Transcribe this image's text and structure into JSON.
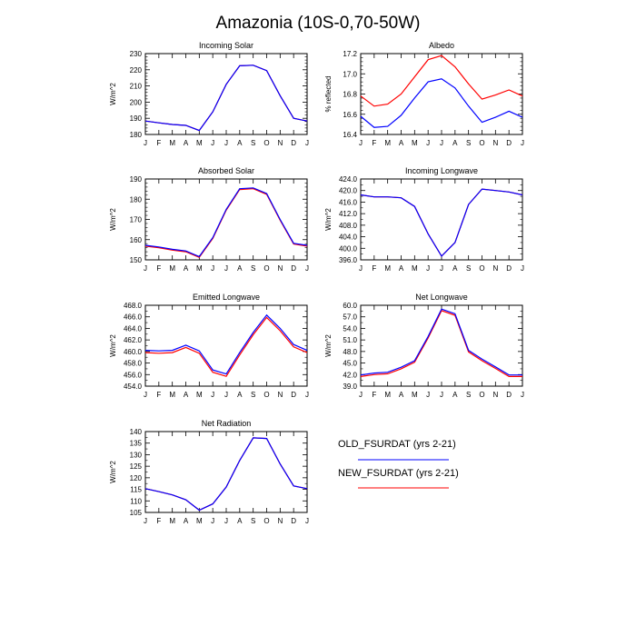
{
  "title": "Amazonia (10S-0,70-50W)",
  "months": [
    "J",
    "F",
    "M",
    "A",
    "M",
    "J",
    "J",
    "A",
    "S",
    "O",
    "N",
    "D",
    "J"
  ],
  "legend": [
    {
      "label": "OLD_FSURDAT (yrs 2-21)",
      "color": "#0000ff"
    },
    {
      "label": "NEW_FSURDAT (yrs 2-21)",
      "color": "#ff0000"
    }
  ],
  "chart_data": [
    {
      "type": "line",
      "title": "Incoming Solar",
      "ylabel": "W/m^2",
      "ylim": [
        180,
        230
      ],
      "yticks": [
        "180",
        "190",
        "200",
        "210",
        "220",
        "230"
      ],
      "series": [
        {
          "name": "OLD_FSURDAT (yrs 2-21)",
          "color": "#0000ff",
          "values": [
            188.3,
            187.2,
            186.2,
            185.6,
            182.5,
            194.0,
            211.0,
            222.5,
            222.8,
            219.5,
            204.0,
            190.0,
            188.3
          ]
        },
        {
          "name": "NEW_FSURDAT (yrs 2-21)",
          "color": "#ff0000",
          "values": [
            188.3,
            187.2,
            186.2,
            185.6,
            182.5,
            194.0,
            211.0,
            222.5,
            222.8,
            219.5,
            204.0,
            190.0,
            188.3
          ]
        }
      ]
    },
    {
      "type": "line",
      "title": "Albedo",
      "ylabel": "% reflected",
      "ylim": [
        16.4,
        17.2
      ],
      "yticks": [
        "16.4",
        "16.6",
        "16.8",
        "17.0",
        "17.2"
      ],
      "series": [
        {
          "name": "OLD_FSURDAT (yrs 2-21)",
          "color": "#0000ff",
          "values": [
            16.58,
            16.47,
            16.48,
            16.59,
            16.76,
            16.92,
            16.95,
            16.86,
            16.68,
            16.52,
            16.57,
            16.63,
            16.57
          ]
        },
        {
          "name": "NEW_FSURDAT (yrs 2-21)",
          "color": "#ff0000",
          "values": [
            16.78,
            16.68,
            16.7,
            16.8,
            16.97,
            17.14,
            17.18,
            17.07,
            16.9,
            16.75,
            16.79,
            16.84,
            16.78
          ]
        }
      ]
    },
    {
      "type": "line",
      "title": "Absorbed Solar",
      "ylabel": "W/m^2",
      "ylim": [
        150,
        190
      ],
      "yticks": [
        "150",
        "160",
        "170",
        "180",
        "190"
      ],
      "series": [
        {
          "name": "OLD_FSURDAT (yrs 2-21)",
          "color": "#0000ff",
          "values": [
            157.2,
            156.4,
            155.2,
            154.4,
            151.6,
            161.0,
            175.0,
            185.2,
            185.6,
            182.8,
            170.0,
            158.2,
            157.2
          ]
        },
        {
          "name": "NEW_FSURDAT (yrs 2-21)",
          "color": "#ff0000",
          "values": [
            156.8,
            156.0,
            154.8,
            154.0,
            151.2,
            160.6,
            174.6,
            184.8,
            185.2,
            182.4,
            169.6,
            157.8,
            156.8
          ]
        }
      ]
    },
    {
      "type": "line",
      "title": "Incoming Longwave",
      "ylabel": "W/m^2",
      "ylim": [
        396.0,
        424.0
      ],
      "yticks": [
        "396.0",
        "400.0",
        "404.0",
        "408.0",
        "412.0",
        "416.0",
        "420.0",
        "424.0"
      ],
      "series": [
        {
          "name": "OLD_FSURDAT (yrs 2-21)",
          "color": "#0000ff",
          "values": [
            418.5,
            417.8,
            417.8,
            417.5,
            414.5,
            405.0,
            397.3,
            402.0,
            415.2,
            420.5,
            420.0,
            419.5,
            418.5
          ]
        },
        {
          "name": "NEW_FSURDAT (yrs 2-21)",
          "color": "#ff0000",
          "values": [
            418.5,
            417.8,
            417.8,
            417.5,
            414.5,
            405.0,
            397.3,
            402.0,
            415.2,
            420.5,
            420.0,
            419.5,
            418.5
          ]
        }
      ]
    },
    {
      "type": "line",
      "title": "Emitted Longwave",
      "ylabel": "W/m^2",
      "ylim": [
        454.0,
        468.0
      ],
      "yticks": [
        "454.0",
        "456.0",
        "458.0",
        "460.0",
        "462.0",
        "464.0",
        "466.0",
        "468.0"
      ],
      "series": [
        {
          "name": "OLD_FSURDAT (yrs 2-21)",
          "color": "#0000ff",
          "values": [
            460.2,
            460.1,
            460.2,
            461.1,
            460.1,
            456.8,
            456.1,
            459.8,
            463.3,
            466.3,
            464.0,
            461.2,
            460.2
          ]
        },
        {
          "name": "NEW_FSURDAT (yrs 2-21)",
          "color": "#ff0000",
          "values": [
            459.8,
            459.7,
            459.8,
            460.7,
            459.7,
            456.4,
            455.7,
            459.4,
            462.9,
            465.9,
            463.6,
            460.8,
            459.8
          ]
        }
      ]
    },
    {
      "type": "line",
      "title": "Net Longwave",
      "ylabel": "W/m^2",
      "ylim": [
        39.0,
        60.0
      ],
      "yticks": [
        "39.0",
        "42.0",
        "45.0",
        "48.0",
        "51.0",
        "54.0",
        "57.0",
        "60.0"
      ],
      "series": [
        {
          "name": "OLD_FSURDAT (yrs 2-21)",
          "color": "#0000ff",
          "values": [
            41.9,
            42.4,
            42.6,
            43.9,
            45.6,
            51.9,
            59.0,
            57.8,
            48.3,
            46.0,
            44.0,
            41.9,
            41.9
          ]
        },
        {
          "name": "NEW_FSURDAT (yrs 2-21)",
          "color": "#ff0000",
          "values": [
            41.5,
            42.0,
            42.2,
            43.5,
            45.2,
            51.5,
            58.6,
            57.4,
            47.9,
            45.6,
            43.6,
            41.5,
            41.5
          ]
        }
      ]
    },
    {
      "type": "line",
      "title": "Net Radiation",
      "ylabel": "W/m^2",
      "ylim": [
        105,
        140
      ],
      "yticks": [
        "105",
        "110",
        "115",
        "120",
        "125",
        "130",
        "135",
        "140"
      ],
      "series": [
        {
          "name": "OLD_FSURDAT (yrs 2-21)",
          "color": "#0000ff",
          "values": [
            115.3,
            114.0,
            112.6,
            110.5,
            106.0,
            108.7,
            116.0,
            127.5,
            137.3,
            137.0,
            126.0,
            116.5,
            115.3
          ]
        },
        {
          "name": "NEW_FSURDAT (yrs 2-21)",
          "color": "#ff0000",
          "values": [
            115.3,
            114.0,
            112.6,
            110.5,
            106.0,
            108.7,
            116.0,
            127.5,
            137.3,
            137.0,
            126.0,
            116.5,
            115.3
          ]
        }
      ]
    }
  ]
}
